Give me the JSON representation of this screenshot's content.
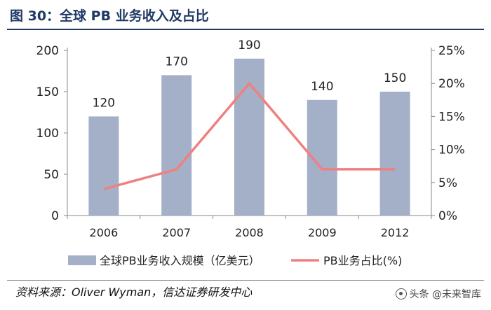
{
  "figure": {
    "title": "图 30：全球 PB 业务收入及占比",
    "source": "资料来源：Oliver Wyman，信达证券研发中心",
    "watermark": "头条 @未来智库"
  },
  "colors": {
    "bar": "#a3b0c8",
    "line": "#f08080",
    "title": "#1f3864",
    "axis": "#888888",
    "text": "#222222"
  },
  "chart_data": {
    "type": "bar",
    "categories": [
      "2006",
      "2007",
      "2008",
      "2009",
      "2012"
    ],
    "series": [
      {
        "name": "全球PB业务收入规模（亿美元）",
        "type": "bar",
        "axis": "left",
        "values": [
          120,
          170,
          190,
          140,
          150
        ],
        "labels": [
          "120",
          "170",
          "190",
          "140",
          "150"
        ]
      },
      {
        "name": "PB业务占比(%)",
        "type": "line",
        "axis": "right",
        "values": [
          4,
          7,
          20,
          7,
          7
        ]
      }
    ],
    "y_left": {
      "min": 0,
      "max": 200,
      "ticks": [
        0,
        50,
        100,
        150,
        200
      ],
      "tick_labels": [
        "0",
        "50",
        "100",
        "150",
        "200"
      ]
    },
    "y_right": {
      "min": 0,
      "max": 25,
      "ticks": [
        0,
        5,
        10,
        15,
        20,
        25
      ],
      "tick_labels": [
        "0%",
        "5%",
        "10%",
        "15%",
        "20%",
        "25%"
      ]
    },
    "grid": false,
    "legend_position": "bottom"
  }
}
